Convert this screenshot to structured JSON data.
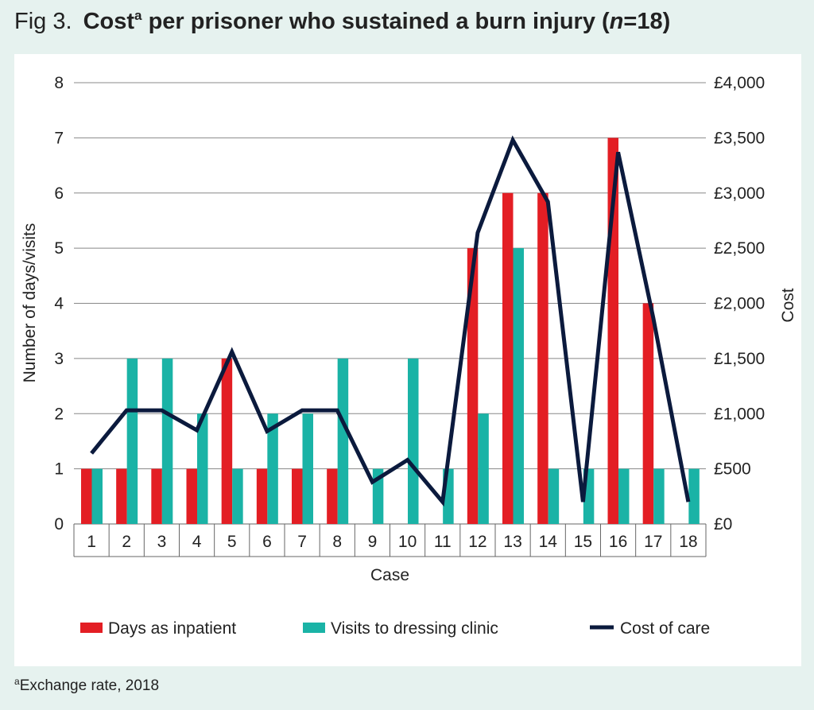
{
  "chart_data": {
    "type": "bar_line",
    "title_parts": [
      "Fig 3.",
      "Cost",
      "a",
      " per prisoner who sustained a burn injury (",
      "n",
      "=18)"
    ],
    "footnote_parts": [
      "a",
      "Exchange rate, 2018"
    ],
    "x_label": "Case",
    "y_label": "Number of days/visits",
    "y2_label": "Cost",
    "categories": [
      "1",
      "2",
      "3",
      "4",
      "5",
      "6",
      "7",
      "8",
      "9",
      "10",
      "11",
      "12",
      "13",
      "14",
      "15",
      "16",
      "17",
      "18"
    ],
    "series": [
      {
        "name": "Days as inpatient",
        "color": "#e31e24",
        "kind": "bar",
        "values": [
          1,
          1,
          1,
          1,
          3,
          1,
          1,
          1,
          0,
          0,
          0,
          5,
          6,
          6,
          0,
          7,
          4,
          0
        ]
      },
      {
        "name": "Visits to dressing clinic",
        "color": "#1ab3a6",
        "kind": "bar",
        "values": [
          1,
          3,
          3,
          2,
          1,
          2,
          2,
          3,
          1,
          3,
          1,
          2,
          5,
          1,
          1,
          1,
          1,
          1
        ]
      },
      {
        "name": "Cost of care",
        "color": "#0b1a3d",
        "kind": "line",
        "axis": "y2",
        "values": [
          640,
          1030,
          1030,
          850,
          1560,
          840,
          1030,
          1030,
          380,
          580,
          200,
          2640,
          3480,
          2920,
          200,
          3370,
          1870,
          200
        ]
      }
    ],
    "ylim": [
      0,
      8
    ],
    "yticks": [
      0,
      1,
      2,
      3,
      4,
      5,
      6,
      7,
      8
    ],
    "y2lim": [
      0,
      4000
    ],
    "y2ticks": [
      {
        "value": 0,
        "label": "£0"
      },
      {
        "value": 500,
        "label": "£500"
      },
      {
        "value": 1000,
        "label": "£1,000"
      },
      {
        "value": 1500,
        "label": "£1,500"
      },
      {
        "value": 2000,
        "label": "£2,000"
      },
      {
        "value": 2500,
        "label": "£2,500"
      },
      {
        "value": 3000,
        "label": "£3,000"
      },
      {
        "value": 3500,
        "label": "£3,500"
      },
      {
        "value": 4000,
        "label": "£4,000"
      }
    ],
    "grid": true
  }
}
